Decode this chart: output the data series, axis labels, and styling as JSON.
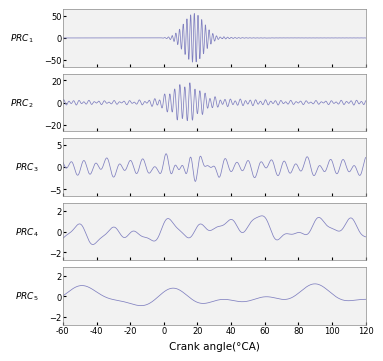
{
  "x_range": [
    -60,
    120
  ],
  "x_ticks": [
    -60,
    -40,
    -20,
    0,
    20,
    40,
    60,
    80,
    100,
    120
  ],
  "subplots": [
    {
      "label": "PRC$_1$",
      "ylim": [
        -65,
        65
      ],
      "yticks": [
        -50,
        0,
        50
      ],
      "signal_type": "prc1"
    },
    {
      "label": "PRC$_2$",
      "ylim": [
        -26,
        26
      ],
      "yticks": [
        -20,
        0,
        20
      ],
      "signal_type": "prc2"
    },
    {
      "label": "PRC$_3$",
      "ylim": [
        -6.5,
        6.5
      ],
      "yticks": [
        -5,
        0,
        5
      ],
      "signal_type": "prc3"
    },
    {
      "label": "PRC$_4$",
      "ylim": [
        -2.8,
        2.8
      ],
      "yticks": [
        -2,
        0,
        2
      ],
      "signal_type": "prc4"
    },
    {
      "label": "PRC$_5$",
      "ylim": [
        -2.8,
        2.8
      ],
      "yticks": [
        -2,
        0,
        2
      ],
      "signal_type": "prc5"
    }
  ],
  "line_color": "#8080c0",
  "line_width": 0.55,
  "xlabel": "Crank angle(°CA)",
  "xlabel_fontsize": 7.5,
  "ylabel_fontsize": 6.5,
  "tick_fontsize": 6,
  "n_points": 3600
}
